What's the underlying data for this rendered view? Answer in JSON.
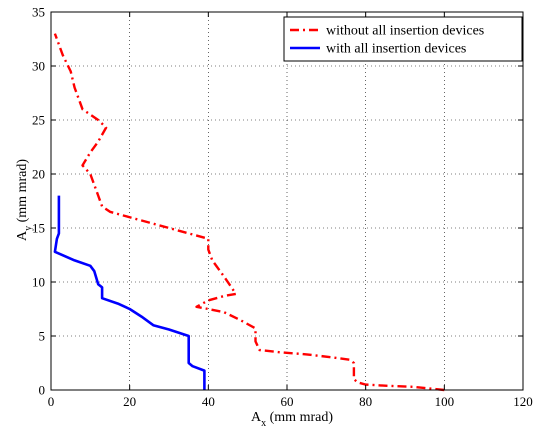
{
  "chart_data": {
    "type": "line",
    "title": "",
    "xlabel_main": "A",
    "xlabel_sub": "x",
    "xlabel_rest": " (mm mrad)",
    "ylabel_main": "A",
    "ylabel_sub": "y",
    "ylabel_rest": " (mm mrad)",
    "xlim": [
      0,
      120
    ],
    "ylim": [
      0,
      35
    ],
    "xticks": [
      0,
      20,
      40,
      60,
      80,
      100,
      120
    ],
    "yticks": [
      0,
      5,
      10,
      15,
      20,
      25,
      30,
      35
    ],
    "grid": true,
    "legend_position": "top-right",
    "series": [
      {
        "name": "without all insertion devices",
        "color": "#ff0000",
        "dash": "dash-dot",
        "points": [
          [
            100,
            0
          ],
          [
            92,
            0.3
          ],
          [
            85,
            0.4
          ],
          [
            80,
            0.5
          ],
          [
            78,
            0.7
          ],
          [
            77,
            1.0
          ],
          [
            77,
            2.5
          ],
          [
            76,
            2.8
          ],
          [
            72,
            3.0
          ],
          [
            65,
            3.3
          ],
          [
            58,
            3.5
          ],
          [
            53,
            3.7
          ],
          [
            52,
            4.5
          ],
          [
            52,
            5.7
          ],
          [
            48,
            6.5
          ],
          [
            44,
            7.2
          ],
          [
            40,
            7.5
          ],
          [
            37,
            7.7
          ],
          [
            40,
            8.3
          ],
          [
            44,
            8.7
          ],
          [
            47,
            8.9
          ],
          [
            44,
            10.5
          ],
          [
            41,
            12.0
          ],
          [
            40,
            13.0
          ],
          [
            40,
            14.0
          ],
          [
            35,
            14.5
          ],
          [
            30,
            15.0
          ],
          [
            22,
            15.8
          ],
          [
            15,
            16.5
          ],
          [
            13,
            17.0
          ],
          [
            12,
            18.0
          ],
          [
            10,
            20.0
          ],
          [
            8,
            20.8
          ],
          [
            10,
            22.0
          ],
          [
            12,
            23.0
          ],
          [
            14,
            24.3
          ],
          [
            12,
            25.0
          ],
          [
            8,
            26.0
          ],
          [
            6,
            28.0
          ],
          [
            5,
            29.5
          ],
          [
            3,
            31.0
          ],
          [
            1,
            33.0
          ]
        ]
      },
      {
        "name": "with all insertion devices",
        "color": "#0000ff",
        "dash": "solid",
        "points": [
          [
            39,
            0
          ],
          [
            39,
            1.8
          ],
          [
            36,
            2.2
          ],
          [
            35,
            2.5
          ],
          [
            35,
            5.0
          ],
          [
            30,
            5.6
          ],
          [
            26,
            6.0
          ],
          [
            23,
            6.8
          ],
          [
            20,
            7.5
          ],
          [
            17,
            8.0
          ],
          [
            13,
            8.5
          ],
          [
            13,
            9.5
          ],
          [
            12,
            9.8
          ],
          [
            11,
            11.0
          ],
          [
            10,
            11.5
          ],
          [
            6,
            12.0
          ],
          [
            1,
            12.8
          ],
          [
            1.5,
            14.0
          ],
          [
            2,
            14.5
          ],
          [
            2,
            16.0
          ],
          [
            2,
            18.0
          ]
        ]
      }
    ]
  }
}
